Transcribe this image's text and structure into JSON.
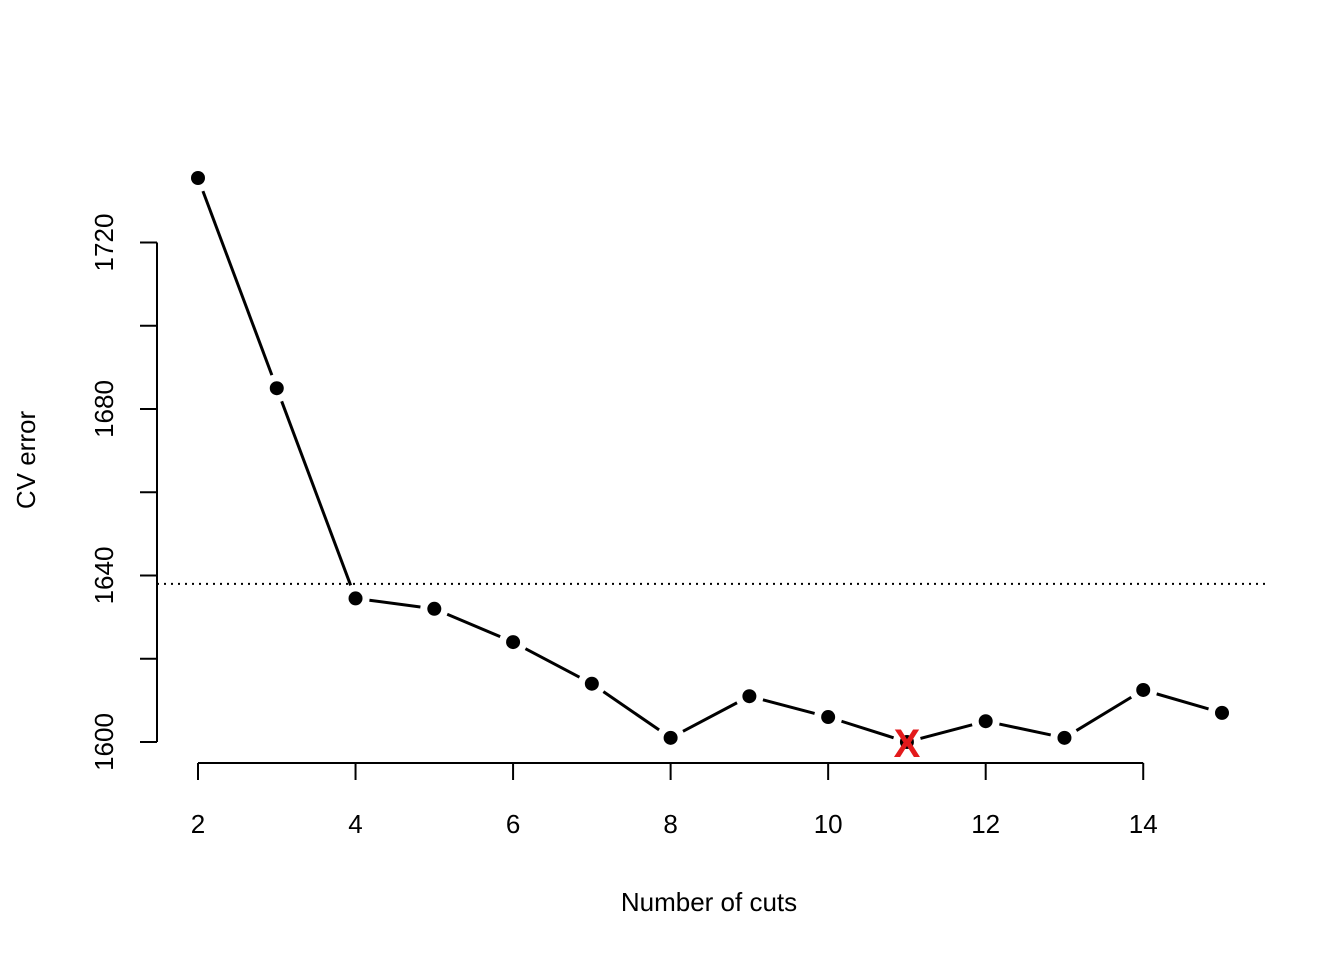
{
  "chart_data": {
    "type": "line",
    "xlabel": "Number of cuts",
    "ylabel": "CV error",
    "x": [
      2,
      3,
      4,
      5,
      6,
      7,
      8,
      9,
      10,
      11,
      12,
      13,
      14,
      15
    ],
    "series": [
      {
        "values": [
          1735.5,
          1685.0,
          1634.5,
          1632.0,
          1624.0,
          1614.0,
          1601.0,
          1611.0,
          1606.0,
          1600.0,
          1605.0,
          1601.0,
          1612.5,
          1607.0
        ]
      }
    ],
    "xlim": [
      2,
      15
    ],
    "ylim": [
      1600,
      1735.5
    ],
    "x_ticks": [
      2,
      4,
      6,
      8,
      10,
      12,
      14
    ],
    "y_ticks": [
      1600,
      1620,
      1640,
      1660,
      1680,
      1700,
      1720
    ],
    "y_tick_labels": [
      "1600",
      "",
      "1640",
      "",
      "1680",
      "",
      "1720"
    ],
    "reference_line": {
      "y": 1638,
      "style": "dotted"
    },
    "minimum_marker": {
      "x": 11,
      "y": 1600,
      "label": "X",
      "color": "#e31a1c"
    },
    "grid": false,
    "line_color": "#000000",
    "point_color": "#000000"
  }
}
